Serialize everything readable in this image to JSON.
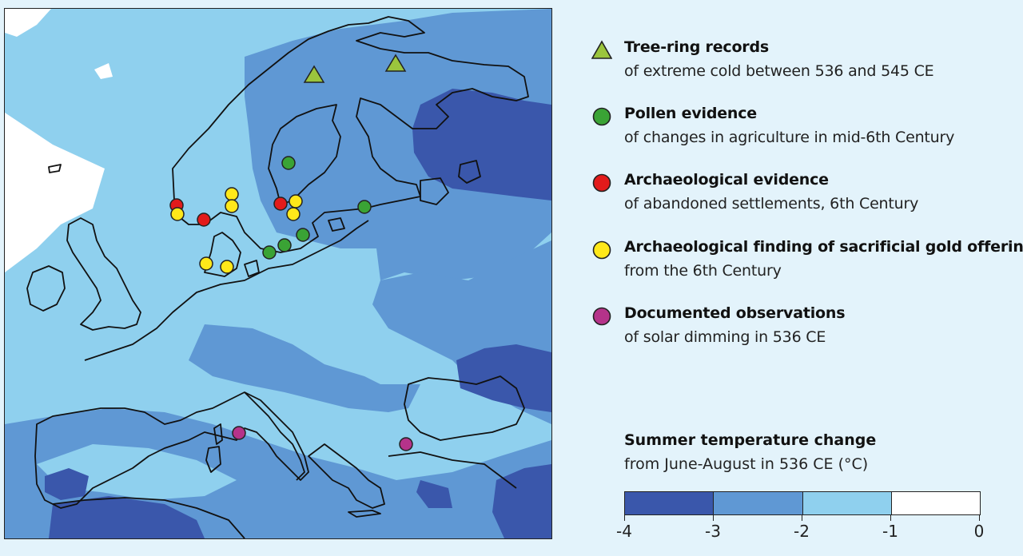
{
  "legend": {
    "items": [
      {
        "title": "Tree-ring records",
        "subtitle": "of extreme cold between 536 and 545 CE",
        "marker": "triangle",
        "color": "#9bc53d"
      },
      {
        "title": "Pollen evidence",
        "subtitle": "of changes in agriculture in mid-6th Century",
        "marker": "circle",
        "color": "#3aa335"
      },
      {
        "title": "Archaeological evidence",
        "subtitle": "of abandoned settlements, 6th Century",
        "marker": "circle",
        "color": "#e21b1b"
      },
      {
        "title": "Archaeological finding of sacrificial gold offerings",
        "subtitle": "from the 6th Century",
        "marker": "circle",
        "color": "#ffe81a"
      },
      {
        "title": "Documented observations",
        "subtitle": "of solar dimming in 536 CE",
        "marker": "circle",
        "color": "#b5338a"
      }
    ]
  },
  "scale": {
    "title": "Summer temperature change",
    "subtitle": "from June-August in 536 CE (°C)",
    "ticks": [
      "-4",
      "-3",
      "-2",
      "-1",
      "0"
    ],
    "colors": [
      "#3a57ab",
      "#5f98d4",
      "#8fd0ee",
      "#ffffff"
    ]
  },
  "map": {
    "colors": {
      "land_border": "#111111",
      "ocean_base": "#8fd0ee",
      "band_3": "#5f98d4",
      "band_4": "#3a57ab",
      "band_0": "#ffffff"
    }
  }
}
